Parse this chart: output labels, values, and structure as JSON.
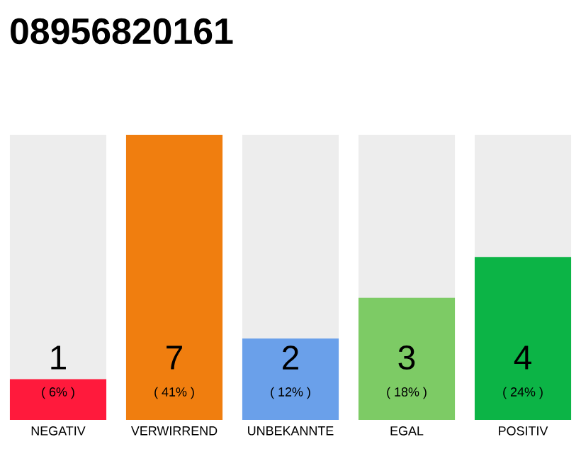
{
  "chart_data": {
    "type": "bar",
    "title": "08956820161",
    "categories": [
      "NEGATIV",
      "VERWIRREND",
      "UNBEKANNTE",
      "EGAL",
      "POSITIV"
    ],
    "values": [
      1,
      7,
      2,
      3,
      4
    ],
    "colors": [
      "#ff1a3c",
      "#f07e0f",
      "#6aa0ea",
      "#7dcb65",
      "#0cb446"
    ],
    "value_labels": [
      "1",
      "7",
      "2",
      "3",
      "4"
    ],
    "annotations": [
      "( 6% )",
      "( 41% )",
      "( 12% )",
      "( 18% )",
      "( 24% )"
    ]
  }
}
